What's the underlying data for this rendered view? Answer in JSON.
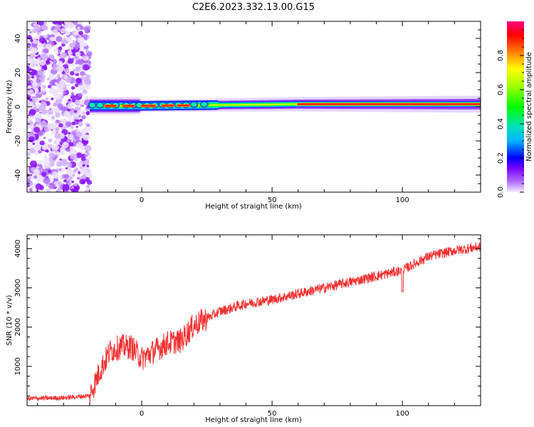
{
  "figure_title": "C2E6.2023.332.13.00.G15",
  "chart_data": [
    {
      "type": "heatmap",
      "xlabel": "Height of straight line (km)",
      "ylabel": "Frequency (Hz)",
      "xlim": [
        -44,
        130
      ],
      "ylim": [
        -50,
        50
      ],
      "xticks": [
        0,
        50,
        100
      ],
      "yticks": [
        -40,
        -20,
        0,
        20,
        40
      ],
      "colorbar": {
        "label": "Normalized spectral amplitude",
        "range": [
          0.0,
          1.0
        ],
        "ticks": [
          0.0,
          0.2,
          0.4,
          0.6,
          0.8
        ]
      },
      "noise_region_x": [
        -44,
        -20
      ],
      "band": {
        "center_freq": [
          {
            "x": -20,
            "f": 0.5
          },
          {
            "x": 0,
            "f": 0.5
          },
          {
            "x": 30,
            "f": 1.0
          },
          {
            "x": 60,
            "f": 1.5
          },
          {
            "x": 90,
            "f": 1.5
          },
          {
            "x": 130,
            "f": 1.5
          }
        ],
        "amplitude_note_x": [
          -20,
          130
        ],
        "peak_segments_x": [
          [
            -14,
            -10
          ],
          [
            -7,
            -3
          ],
          [
            0,
            5
          ],
          [
            8,
            12
          ],
          [
            14,
            18
          ],
          [
            60,
            130
          ]
        ]
      }
    },
    {
      "type": "line",
      "xlabel": "Height of straight line (km)",
      "ylabel": "SNR (10 * v/v)",
      "xlim": [
        -44,
        130
      ],
      "ylim": [
        0,
        4350
      ],
      "xticks": [
        0,
        50,
        100
      ],
      "yticks": [
        1000,
        2000,
        3000,
        4000
      ],
      "color": "#f03030",
      "trend": [
        {
          "x": -44,
          "y": 180
        },
        {
          "x": -30,
          "y": 200
        },
        {
          "x": -20,
          "y": 250
        },
        {
          "x": -16,
          "y": 900
        },
        {
          "x": -12,
          "y": 1400
        },
        {
          "x": -8,
          "y": 1500
        },
        {
          "x": -4,
          "y": 1500
        },
        {
          "x": 0,
          "y": 1200
        },
        {
          "x": 5,
          "y": 1400
        },
        {
          "x": 10,
          "y": 1600
        },
        {
          "x": 15,
          "y": 1650
        },
        {
          "x": 20,
          "y": 2050
        },
        {
          "x": 30,
          "y": 2400
        },
        {
          "x": 40,
          "y": 2600
        },
        {
          "x": 50,
          "y": 2700
        },
        {
          "x": 60,
          "y": 2850
        },
        {
          "x": 70,
          "y": 3000
        },
        {
          "x": 80,
          "y": 3150
        },
        {
          "x": 90,
          "y": 3300
        },
        {
          "x": 100,
          "y": 3450
        },
        {
          "x": 110,
          "y": 3800
        },
        {
          "x": 120,
          "y": 3950
        },
        {
          "x": 130,
          "y": 4050
        }
      ],
      "notable_dip": {
        "x": 100,
        "y": 2900
      }
    }
  ]
}
